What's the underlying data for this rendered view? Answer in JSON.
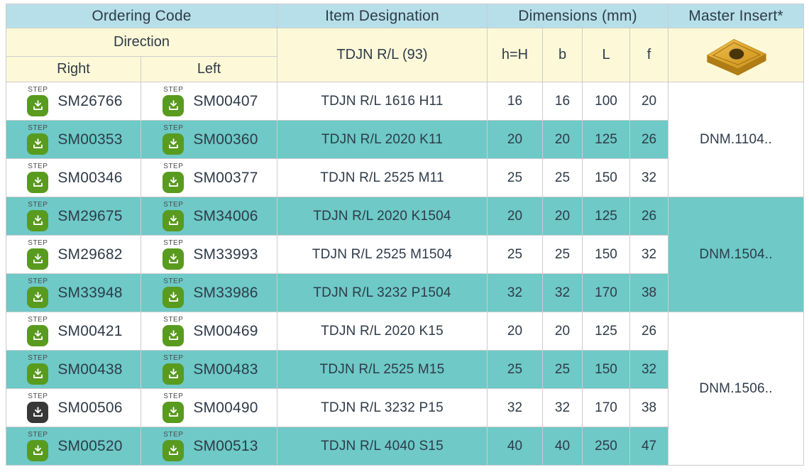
{
  "table": {
    "header": {
      "ordering_code": "Ordering Code",
      "item_designation": "Item Designation",
      "dimensions_mm": "Dimensions (mm)",
      "master_insert": "Master Insert*",
      "direction": "Direction",
      "right": "Right",
      "left": "Left",
      "designation_group": "TDJN R/L (93)",
      "dim_cols": [
        "h=H",
        "b",
        "L",
        "f"
      ]
    },
    "step_label": "STEP",
    "icons": {
      "step_download": "download-arrow-into-tray-icon",
      "master_insert_image": "gold-diamond-turning-insert-with-center-hole"
    },
    "colors": {
      "header_blue": "#b6dfe9",
      "header_yellow": "#fdf9d8",
      "row_teal": "#6ec9c7",
      "text_dark": "#2e3b49",
      "icon_green": "#589b1e",
      "icon_dark": "#383838",
      "border_gray": "#cccccc",
      "insert_gold": "#d9a02a"
    },
    "rows": [
      {
        "right_code": "SM26766",
        "right_icon": "green",
        "left_code": "SM00407",
        "right": true,
        "left_icon": "green",
        "designation": "TDJN R/L 1616 H11",
        "h": "16",
        "b": "16",
        "l": "100",
        "f": "20",
        "shaded": false
      },
      {
        "right_code": "SM00353",
        "right_icon": "green",
        "left_code": "SM00360",
        "left_icon": "green",
        "designation": "TDJN R/L 2020 K11",
        "h": "20",
        "b": "20",
        "l": "125",
        "f": "26",
        "shaded": true
      },
      {
        "right_code": "SM00346",
        "right_icon": "green",
        "left_code": "SM00377",
        "left_icon": "green",
        "designation": "TDJN R/L 2525 M11",
        "h": "25",
        "b": "25",
        "l": "150",
        "f": "32",
        "shaded": false
      },
      {
        "right_code": "SM29675",
        "right_icon": "green",
        "left_code": "SM34006",
        "left_icon": "green",
        "designation": "TDJN R/L 2020 K1504",
        "h": "20",
        "b": "20",
        "l": "125",
        "f": "26",
        "shaded": true
      },
      {
        "right_code": "SM29682",
        "right_icon": "green",
        "left_code": "SM33993",
        "left_icon": "green",
        "designation": "TDJN R/L 2525 M1504",
        "h": "25",
        "b": "25",
        "l": "150",
        "f": "32",
        "shaded": false
      },
      {
        "right_code": "SM33948",
        "right_icon": "green",
        "left_code": "SM33986",
        "left_icon": "green",
        "designation": "TDJN R/L 3232 P1504",
        "h": "32",
        "b": "32",
        "l": "170",
        "f": "38",
        "shaded": true
      },
      {
        "right_code": "SM00421",
        "right_icon": "green",
        "left_code": "SM00469",
        "left_icon": "green",
        "designation": "TDJN R/L 2020 K15",
        "h": "20",
        "b": "20",
        "l": "125",
        "f": "26",
        "shaded": false
      },
      {
        "right_code": "SM00438",
        "right_icon": "green",
        "left_code": "SM00483",
        "left_icon": "green",
        "designation": "TDJN R/L 2525 M15",
        "h": "25",
        "b": "25",
        "l": "150",
        "f": "32",
        "shaded": true
      },
      {
        "right_code": "SM00506",
        "right_icon": "dark",
        "left_code": "SM00490",
        "left_icon": "green",
        "designation": "TDJN R/L 3232 P15",
        "h": "32",
        "b": "32",
        "l": "170",
        "f": "38",
        "shaded": false
      },
      {
        "right_code": "SM00520",
        "right_icon": "green",
        "left_code": "SM00513",
        "left_icon": "green",
        "designation": "TDJN R/L 4040 S15",
        "h": "40",
        "b": "40",
        "l": "250",
        "f": "47",
        "shaded": true
      }
    ],
    "insert_groups": [
      {
        "label": "DNM.1104..",
        "row_span": 3,
        "shaded": false
      },
      {
        "label": "DNM.1504..",
        "row_span": 3,
        "shaded": true
      },
      {
        "label": "DNM.1506..",
        "row_span": 4,
        "shaded": false
      }
    ]
  }
}
